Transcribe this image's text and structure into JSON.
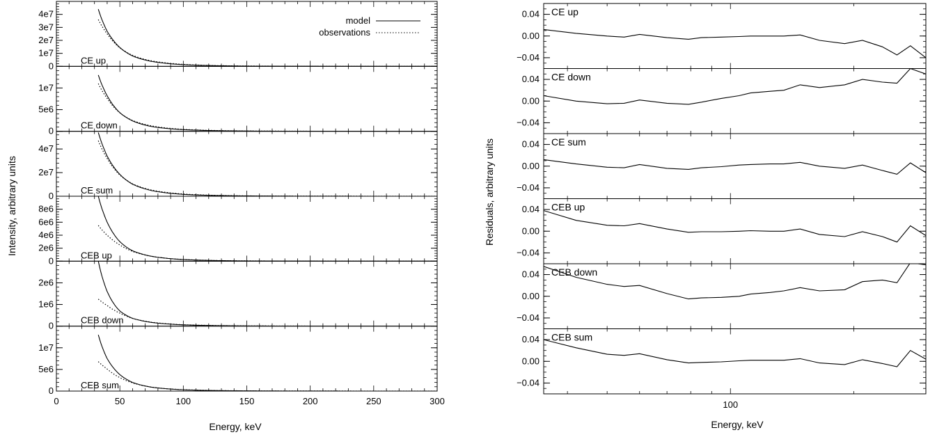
{
  "chart_data": [
    {
      "type": "line",
      "ylabel": "Intensity, arbitrary units",
      "xlabel": "Energy, keV",
      "xlim": [
        0,
        300
      ],
      "xticks": [
        0,
        50,
        100,
        150,
        200,
        250,
        300
      ],
      "legend": {
        "placement": "top-right",
        "entries": [
          {
            "name": "model",
            "style": "solid"
          },
          {
            "name": "observations",
            "style": "dotted"
          }
        ]
      },
      "panels": [
        {
          "label": "CE up",
          "ylim": [
            0,
            50000000
          ],
          "yticks": [
            0,
            10000000,
            20000000,
            30000000,
            40000000
          ],
          "yticklabels": [
            "0",
            "1e7",
            "2e7",
            "3e7",
            "4e7"
          ],
          "series": [
            {
              "name": "model",
              "x": [
                33,
                40,
                50,
                60,
                75,
                100,
                150,
                200,
                250,
                300
              ],
              "y": [
                44000000,
                27000000,
                14500000,
                8000000,
                3800000,
                1300000,
                200000,
                50000,
                20000,
                10000
              ]
            },
            {
              "name": "observations",
              "x": [
                33,
                40,
                50,
                60,
                75,
                100,
                150,
                200,
                250,
                300
              ],
              "y": [
                36000000,
                25000000,
                14200000,
                8500000,
                4200000,
                1500000,
                250000,
                60000,
                25000,
                10000
              ]
            }
          ]
        },
        {
          "label": "CE down",
          "ylim": [
            0,
            15000000
          ],
          "yticks": [
            0,
            5000000,
            10000000
          ],
          "yticklabels": [
            "0",
            "5e6",
            "1e7"
          ],
          "series": [
            {
              "name": "model",
              "x": [
                33,
                40,
                50,
                60,
                75,
                100,
                150,
                200,
                250,
                300
              ],
              "y": [
                13000000,
                8200000,
                4300000,
                2400000,
                1100000,
                380000,
                60000,
                15000,
                5000,
                2000
              ]
            },
            {
              "name": "observations",
              "x": [
                33,
                40,
                50,
                60,
                75,
                100,
                150,
                200,
                250,
                300
              ],
              "y": [
                11000000,
                7600000,
                4250000,
                2500000,
                1250000,
                440000,
                75000,
                18000,
                6000,
                2000
              ]
            }
          ]
        },
        {
          "label": "CE sum",
          "ylim": [
            0,
            55000000
          ],
          "yticks": [
            0,
            20000000,
            40000000
          ],
          "yticklabels": [
            "0",
            "2e7",
            "4e7"
          ],
          "series": [
            {
              "name": "model",
              "x": [
                33,
                40,
                50,
                60,
                75,
                100,
                150,
                200,
                250,
                300
              ],
              "y": [
                54000000,
                34000000,
                18500000,
                10200000,
                4800000,
                1600000,
                250000,
                60000,
                20000,
                10000
              ]
            },
            {
              "name": "observations",
              "x": [
                33,
                40,
                50,
                60,
                75,
                100,
                150,
                200,
                250,
                300
              ],
              "y": [
                47000000,
                32000000,
                18000000,
                10500000,
                5200000,
                1900000,
                300000,
                70000,
                25000,
                10000
              ]
            }
          ]
        },
        {
          "label": "CEB up",
          "ylim": [
            0,
            10000000
          ],
          "yticks": [
            0,
            2000000,
            4000000,
            6000000,
            8000000
          ],
          "yticklabels": [
            "0",
            "2e6",
            "4e6",
            "6e6",
            "8e6"
          ],
          "series": [
            {
              "name": "model",
              "x": [
                33,
                40,
                50,
                60,
                75,
                100,
                150,
                200,
                250,
                300
              ],
              "y": [
                10000000,
                6000000,
                3000000,
                1600000,
                750000,
                250000,
                40000,
                10000,
                4000,
                2000
              ]
            },
            {
              "name": "observations",
              "x": [
                33,
                40,
                50,
                60,
                75,
                100,
                150,
                200,
                250,
                300
              ],
              "y": [
                5500000,
                4000000,
                2500000,
                1500000,
                750000,
                260000,
                45000,
                12000,
                5000,
                2000
              ]
            }
          ]
        },
        {
          "label": "CEB down",
          "ylim": [
            0,
            3000000
          ],
          "yticks": [
            0,
            1000000,
            2000000
          ],
          "yticklabels": [
            "0",
            "1e6",
            "2e6"
          ],
          "series": [
            {
              "name": "model",
              "x": [
                33,
                40,
                50,
                60,
                75,
                100,
                150,
                200,
                250,
                300
              ],
              "y": [
                3000000,
                1600000,
                700000,
                360000,
                170000,
                60000,
                10000,
                3000,
                1000,
                500
              ]
            },
            {
              "name": "observations",
              "x": [
                33,
                40,
                50,
                60,
                75,
                100,
                150,
                200,
                250,
                300
              ],
              "y": [
                1250000,
                950000,
                600000,
                360000,
                180000,
                65000,
                12000,
                3500,
                1200,
                500
              ]
            }
          ]
        },
        {
          "label": "CEB sum",
          "ylim": [
            0,
            15000000
          ],
          "yticks": [
            0,
            5000000,
            10000000
          ],
          "yticklabels": [
            "0",
            "5e6",
            "1e7"
          ],
          "series": [
            {
              "name": "model",
              "x": [
                33,
                40,
                50,
                60,
                75,
                100,
                150,
                200,
                250,
                300
              ],
              "y": [
                13000000,
                7500000,
                3800000,
                2000000,
                900000,
                300000,
                50000,
                12000,
                5000,
                2000
              ]
            },
            {
              "name": "observations",
              "x": [
                33,
                40,
                50,
                60,
                75,
                100,
                150,
                200,
                250,
                300
              ],
              "y": [
                6800000,
                5100000,
                3100000,
                1900000,
                900000,
                320000,
                55000,
                14000,
                6000,
                2000
              ]
            }
          ]
        }
      ]
    },
    {
      "type": "line",
      "ylabel": "Residuals, arbitrary units",
      "xlabel": "Energy, keV",
      "xscale": "log",
      "xlim": [
        35,
        300
      ],
      "xticks": [
        100
      ],
      "xticklabels": [
        "100"
      ],
      "yticks": [
        -0.04,
        0.0,
        0.04
      ],
      "yticklabels": [
        "−0.04",
        "0.00",
        "0.04"
      ],
      "ylim": [
        -0.06,
        0.06
      ],
      "panels": [
        {
          "label": "CE up",
          "x": [
            35,
            42,
            50,
            55,
            60,
            70,
            79,
            85,
            95,
            105,
            112,
            125,
            135,
            148,
            165,
            190,
            210,
            235,
            255,
            275,
            300
          ],
          "y": [
            0.012,
            0.005,
            0.0,
            -0.002,
            0.003,
            -0.003,
            -0.006,
            -0.003,
            -0.002,
            -0.001,
            0.0,
            0.0,
            0.0,
            0.002,
            -0.008,
            -0.014,
            -0.008,
            -0.02,
            -0.035,
            -0.018,
            -0.04
          ]
        },
        {
          "label": "CE down",
          "x": [
            35,
            42,
            50,
            55,
            60,
            70,
            79,
            85,
            95,
            105,
            112,
            125,
            135,
            148,
            165,
            190,
            210,
            235,
            255,
            275,
            300
          ],
          "y": [
            0.01,
            0.0,
            -0.005,
            -0.004,
            0.002,
            -0.004,
            -0.006,
            -0.002,
            0.005,
            0.01,
            0.015,
            0.018,
            0.02,
            0.03,
            0.025,
            0.03,
            0.04,
            0.035,
            0.033,
            0.06,
            0.05
          ]
        },
        {
          "label": "CE sum",
          "x": [
            35,
            42,
            50,
            55,
            60,
            70,
            79,
            85,
            95,
            105,
            112,
            125,
            135,
            148,
            165,
            190,
            210,
            235,
            255,
            275,
            300
          ],
          "y": [
            0.012,
            0.004,
            -0.002,
            -0.003,
            0.003,
            -0.004,
            -0.006,
            -0.003,
            -0.001,
            0.002,
            0.003,
            0.004,
            0.004,
            0.007,
            0.0,
            -0.004,
            0.002,
            -0.008,
            -0.015,
            0.006,
            -0.012
          ]
        },
        {
          "label": "CEB up",
          "x": [
            35,
            42,
            50,
            55,
            60,
            70,
            79,
            85,
            95,
            105,
            112,
            125,
            135,
            148,
            165,
            190,
            210,
            235,
            255,
            275,
            300
          ],
          "y": [
            0.038,
            0.02,
            0.011,
            0.01,
            0.014,
            0.004,
            -0.002,
            -0.001,
            -0.001,
            0.0,
            0.001,
            0.0,
            0.0,
            0.004,
            -0.006,
            -0.01,
            -0.001,
            -0.01,
            -0.02,
            0.01,
            -0.008
          ]
        },
        {
          "label": "CEB down",
          "x": [
            35,
            42,
            50,
            55,
            60,
            70,
            79,
            85,
            95,
            105,
            112,
            125,
            135,
            148,
            165,
            190,
            210,
            235,
            255,
            275,
            300
          ],
          "y": [
            0.055,
            0.035,
            0.022,
            0.018,
            0.02,
            0.005,
            -0.005,
            -0.003,
            -0.002,
            0.0,
            0.004,
            0.007,
            0.01,
            0.016,
            0.01,
            0.012,
            0.027,
            0.03,
            0.025,
            0.062,
            0.058
          ]
        },
        {
          "label": "CEB sum",
          "x": [
            35,
            42,
            50,
            55,
            60,
            70,
            79,
            85,
            95,
            105,
            112,
            125,
            135,
            148,
            165,
            190,
            210,
            235,
            255,
            275,
            300
          ],
          "y": [
            0.04,
            0.025,
            0.013,
            0.011,
            0.014,
            0.003,
            -0.003,
            -0.002,
            -0.001,
            0.001,
            0.002,
            0.002,
            0.002,
            0.005,
            -0.003,
            -0.006,
            0.003,
            -0.004,
            -0.01,
            0.02,
            0.004
          ]
        }
      ]
    }
  ]
}
